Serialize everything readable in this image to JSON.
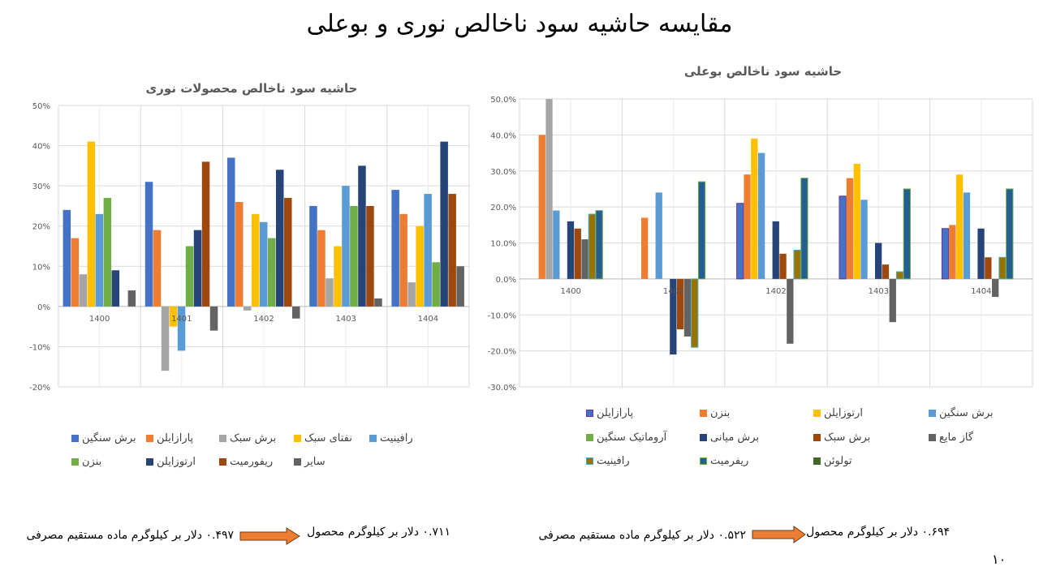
{
  "page_title": "مقایسه حاشیه سود ناخالص نوری و بوعلی",
  "page_number": "۱۰",
  "chart_data": [
    {
      "type": "bar",
      "title": "حاشیه سود ناخالص محصولات نوری",
      "categories": [
        "1400",
        "1401",
        "1402",
        "1403",
        "1404"
      ],
      "ylim": [
        -20,
        50
      ],
      "yticks": [
        "50%",
        "40%",
        "30%",
        "20%",
        "10%",
        "0%",
        "-10%",
        "-20%"
      ],
      "grid": true,
      "legend_position": "bottom",
      "series": [
        {
          "name": "برش سنگین",
          "color": "#4472c4",
          "values": [
            24,
            31,
            37,
            25,
            29
          ]
        },
        {
          "name": "پارازایلن",
          "color": "#ed7d31",
          "values": [
            17,
            19,
            26,
            19,
            23
          ]
        },
        {
          "name": "برش سبک",
          "color": "#a5a5a5",
          "values": [
            8,
            -16,
            -1,
            7,
            6
          ]
        },
        {
          "name": "نفتای سبک",
          "color": "#ffc000",
          "values": [
            41,
            -5,
            23,
            15,
            20
          ]
        },
        {
          "name": "رافینیت",
          "color": "#5b9bd5",
          "values": [
            23,
            -11,
            21,
            30,
            28
          ]
        },
        {
          "name": "بنزن",
          "color": "#70ad47",
          "values": [
            27,
            15,
            17,
            25,
            11
          ]
        },
        {
          "name": "ارتوزایلن",
          "color": "#264478",
          "values": [
            9,
            19,
            34,
            35,
            41
          ]
        },
        {
          "name": "ریفورمیت",
          "color": "#9e480e",
          "values": [
            null,
            36,
            27,
            25,
            28
          ]
        },
        {
          "name": "سایر",
          "color": "#636363",
          "values": [
            4,
            -6,
            -3,
            2,
            10
          ]
        }
      ]
    },
    {
      "type": "bar",
      "title": "حاشیه سود ناخالص بوعلی",
      "categories": [
        "1400",
        "1401",
        "1402",
        "1403",
        "1404"
      ],
      "ylim": [
        -30,
        50
      ],
      "yticks": [
        "50.0%",
        "40.0%",
        "30.0%",
        "20.0%",
        "10.0%",
        "0.0%",
        "-10.0%",
        "-20.0%",
        "-30.0%"
      ],
      "grid": true,
      "legend_position": "bottom",
      "series": [
        {
          "name": "پارازایلن",
          "color": "#4472c4",
          "border": "#7030a0",
          "values": [
            null,
            null,
            21,
            23,
            14
          ]
        },
        {
          "name": "بنزن",
          "color": "#ed7d31",
          "values": [
            40,
            17,
            29,
            28,
            15
          ]
        },
        {
          "name": "ارتوزایلن",
          "color": "#ffc000",
          "point_colors": {
            "0": "#a5a5a5"
          },
          "values": [
            50,
            null,
            39,
            32,
            29
          ]
        },
        {
          "name": "برش سنگین",
          "color": "#5b9bd5",
          "values": [
            19,
            24,
            35,
            22,
            24
          ]
        },
        {
          "name": "آروماتیک سنگین",
          "color": "#70ad47",
          "values": [
            null,
            null,
            null,
            null,
            null
          ]
        },
        {
          "name": "برش میانی",
          "color": "#264478",
          "values": [
            16,
            -21,
            16,
            10,
            14
          ]
        },
        {
          "name": "برش سبک",
          "color": "#9e480e",
          "values": [
            14,
            -14,
            7,
            4,
            6
          ]
        },
        {
          "name": "گاز مایع",
          "color": "#636363",
          "values": [
            11,
            -16,
            -18,
            -12,
            -5
          ]
        },
        {
          "name": "رافینیت",
          "color": "#997300",
          "border": "#4bacc6",
          "values": [
            18,
            -19,
            8,
            2,
            6
          ]
        },
        {
          "name": "ریفرمیت",
          "color": "#255e91",
          "border": "#70ad47",
          "values": [
            19,
            27,
            28,
            25,
            25
          ]
        },
        {
          "name": "تولوئن",
          "color": "#43682b",
          "values": [
            null,
            null,
            null,
            null,
            null
          ]
        }
      ]
    }
  ],
  "notes": {
    "left_product": "۰.۷۱۱ دلار بر کیلوگرم محصول",
    "left_feed": "۰.۴۹۷ دلار بر کیلوگرم ماده مستقیم مصرفی",
    "right_product": "۰.۶۹۴ دلار بر کیلوگرم محصول",
    "right_feed": "۰.۵۲۲ دلار بر کیلوگرم ماده مستقیم مصرفی",
    "arrow_color": "#ed7d31"
  }
}
